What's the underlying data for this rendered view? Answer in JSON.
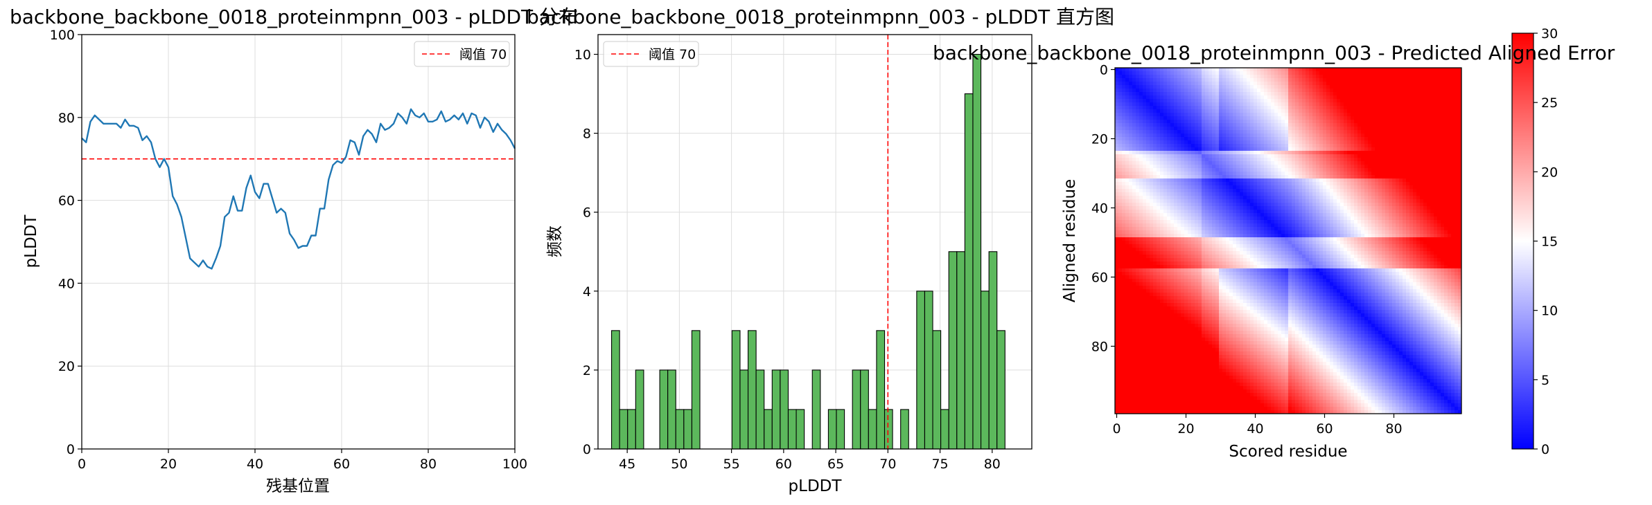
{
  "chart_data": [
    {
      "type": "line",
      "title": "backbone_backbone_0018_proteinmpnn_003 - pLDDT 分布",
      "xlabel": "残基位置",
      "ylabel": "pLDDT",
      "xlim": [
        0,
        100
      ],
      "ylim": [
        0,
        100
      ],
      "xticks": [
        "0",
        "20",
        "40",
        "60",
        "80",
        "100"
      ],
      "yticks": [
        "0",
        "20",
        "40",
        "60",
        "80",
        "100"
      ],
      "grid": true,
      "legend_position": "top-right",
      "series_color": "#1f77b4",
      "threshold": {
        "value": 70,
        "label": "阈值 70",
        "color": "#ff0000"
      },
      "x": [
        0,
        1,
        2,
        3,
        4,
        5,
        6,
        7,
        8,
        9,
        10,
        11,
        12,
        13,
        14,
        15,
        16,
        17,
        18,
        19,
        20,
        21,
        22,
        23,
        24,
        25,
        26,
        27,
        28,
        29,
        30,
        31,
        32,
        33,
        34,
        35,
        36,
        37,
        38,
        39,
        40,
        41,
        42,
        43,
        44,
        45,
        46,
        47,
        48,
        49,
        50,
        51,
        52,
        53,
        54,
        55,
        56,
        57,
        58,
        59,
        60,
        61,
        62,
        63,
        64,
        65,
        66,
        67,
        68,
        69,
        70,
        71,
        72,
        73,
        74,
        75,
        76,
        77,
        78,
        79,
        80,
        81,
        82,
        83,
        84,
        85,
        86,
        87,
        88,
        89,
        90,
        91,
        92,
        93,
        94,
        95,
        96,
        97,
        98,
        99,
        100
      ],
      "y": [
        75,
        74,
        79,
        80.5,
        79.5,
        78.5,
        78.5,
        78.5,
        78.5,
        77.5,
        79.5,
        78,
        78,
        77.5,
        74.5,
        75.5,
        74,
        70,
        68,
        70,
        68,
        61,
        59,
        56,
        51,
        46,
        45,
        44,
        45.5,
        44,
        43.5,
        46,
        49,
        56,
        57,
        61,
        57.5,
        57.5,
        63,
        66,
        62,
        60.5,
        64,
        64,
        60.5,
        57,
        58,
        57,
        52,
        50.5,
        48.5,
        49,
        49,
        51.5,
        51.5,
        58,
        58,
        65,
        68.5,
        69.5,
        69,
        70.5,
        74.5,
        74,
        71,
        75.5,
        77,
        76,
        74,
        78.5,
        77,
        77.5,
        78.5,
        81,
        80,
        78.5,
        82,
        80.5,
        80,
        81,
        79,
        79,
        79.5,
        81.5,
        79,
        79.5,
        80.5,
        79.5,
        81,
        78.5,
        81,
        80.5,
        77.5,
        80,
        79,
        76.5,
        78.5,
        77,
        76,
        74.5,
        72.5
      ]
    },
    {
      "type": "bar",
      "title": "backbone_backbone_0018_proteinmpnn_003 - pLDDT 直方图",
      "xlabel": "pLDDT",
      "ylabel": "频数",
      "xlim": [
        42.2,
        83.8
      ],
      "ylim": [
        0,
        10.5
      ],
      "xticks": [
        "45",
        "50",
        "55",
        "60",
        "65",
        "70",
        "75",
        "80"
      ],
      "yticks": [
        "0",
        "2",
        "4",
        "6",
        "8",
        "10"
      ],
      "grid": true,
      "legend_position": "top-left",
      "bar_color": "#5cb85c",
      "bin_start": 43.5,
      "bin_width": 0.77,
      "counts": [
        3,
        1,
        1,
        2,
        0,
        0,
        2,
        2,
        1,
        1,
        3,
        0,
        0,
        0,
        0,
        3,
        2,
        3,
        2,
        1,
        2,
        2,
        1,
        1,
        0,
        2,
        0,
        1,
        1,
        0,
        2,
        2,
        1,
        3,
        1,
        0,
        1,
        0,
        4,
        4,
        3,
        1,
        5,
        5,
        9,
        10,
        4,
        5,
        3
      ],
      "threshold": {
        "value": 70,
        "label": "阈值 70",
        "color": "#ff0000"
      }
    },
    {
      "type": "heatmap",
      "title": "backbone_backbone_0018_proteinmpnn_003 - Predicted Aligned Error",
      "xlabel": "Scored residue",
      "ylabel": "Aligned residue",
      "size": 100,
      "xticks": [
        "0",
        "20",
        "40",
        "60",
        "80"
      ],
      "yticks": [
        "0",
        "20",
        "40",
        "60",
        "80"
      ],
      "colormap": "bwr",
      "vmin": 0,
      "vmax": 30,
      "colorbar_ticks": [
        "0",
        "5",
        "10",
        "15",
        "20",
        "25",
        "30"
      ]
    }
  ]
}
